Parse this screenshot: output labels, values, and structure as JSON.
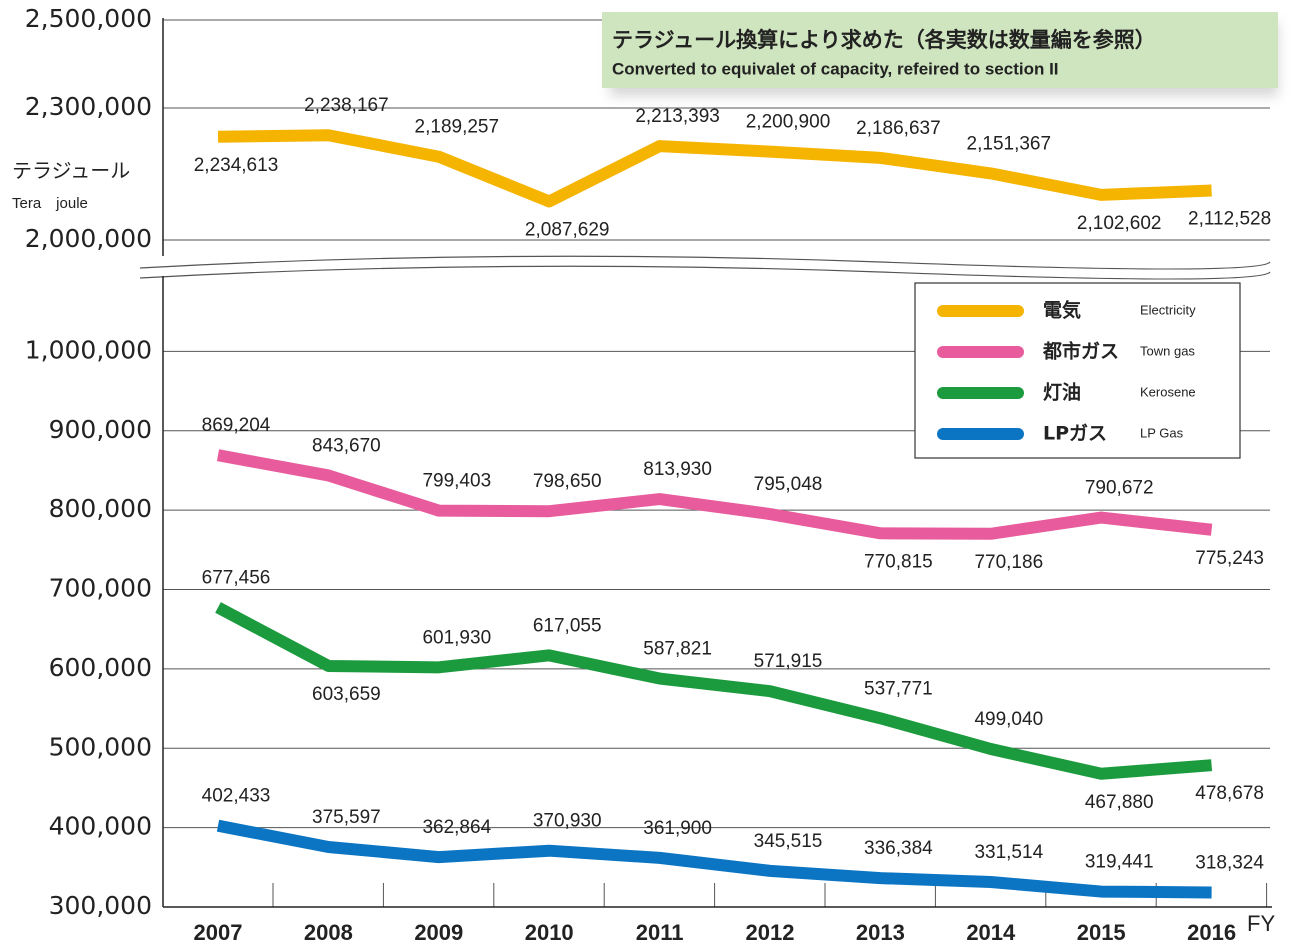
{
  "chart_data": {
    "type": "line",
    "annotation": "テラジュール換算により求めた（各実数は数量編を参照）",
    "annotation_en": "Converted to equivalet of capacity, refeired to section II",
    "y_label": "テラジュール",
    "y_label_en": "Tera　joule",
    "x_label": "FY",
    "categories": [
      "2007",
      "2008",
      "2009",
      "2010",
      "2011",
      "2012",
      "2013",
      "2014",
      "2015",
      "2016"
    ],
    "ylim": [
      300000,
      1100000
    ],
    "yticks": [
      {
        "value": 300000,
        "label": "300,000"
      },
      {
        "value": 400000,
        "label": "400,000"
      },
      {
        "value": 500000,
        "label": "500,000"
      },
      {
        "value": 600000,
        "label": "600,000"
      },
      {
        "value": 700000,
        "label": "700,000"
      },
      {
        "value": 800000,
        "label": "800,000"
      },
      {
        "value": 900000,
        "label": "900,000"
      },
      {
        "value": 1000000,
        "label": "1,000,000"
      }
    ],
    "y2lim": [
      2000000,
      2500000
    ],
    "y2ticks": [
      {
        "value": 2000000,
        "label": "2,000,000"
      },
      {
        "value": 2300000,
        "label": "2,300,000"
      },
      {
        "value": 2500000,
        "label": "2,500,000"
      }
    ],
    "grid": true,
    "legend": "upper right",
    "series": [
      {
        "name": "電気",
        "name_en": "Electricity",
        "color": "#f5b400",
        "axis": "y2",
        "values": [
          2234613,
          2238167,
          2189257,
          2087629,
          2213393,
          2200900,
          2186637,
          2151367,
          2102602,
          2112528
        ],
        "value_labels": [
          "2,234,613",
          "2,238,167",
          "2,189,257",
          "2,087,629",
          "2,213,393",
          "2,200,900",
          "2,186,637",
          "2,151,367",
          "2,102,602",
          "2,112,528"
        ]
      },
      {
        "name": "都市ガス",
        "name_en": "Town gas",
        "color": "#e85b9c",
        "values": [
          869204,
          843670,
          799403,
          798650,
          813930,
          795048,
          770815,
          770186,
          790672,
          775243
        ],
        "value_labels": [
          "869,204",
          "843,670",
          "799,403",
          "798,650",
          "813,930",
          "795,048",
          "770,815",
          "770,186",
          "790,672",
          "775,243"
        ]
      },
      {
        "name": "灯油",
        "name_en": "Kerosene",
        "color": "#1c9b3e",
        "values": [
          677456,
          603659,
          601930,
          617055,
          587821,
          571915,
          537771,
          499040,
          467880,
          478678
        ],
        "value_labels": [
          "677,456",
          "603,659",
          "601,930",
          "617,055",
          "587,821",
          "571,915",
          "537,771",
          "499,040",
          "467,880",
          "478,678"
        ]
      },
      {
        "name": "LPガス",
        "name_en": "LP Gas",
        "color": "#0b75c3",
        "values": [
          402433,
          375597,
          362864,
          370930,
          361900,
          345515,
          336384,
          331514,
          319441,
          318324
        ],
        "value_labels": [
          "402,433",
          "375,597",
          "362,864",
          "370,930",
          "361,900",
          "345,515",
          "336,384",
          "331,514",
          "319,441",
          "318,324"
        ]
      }
    ]
  }
}
